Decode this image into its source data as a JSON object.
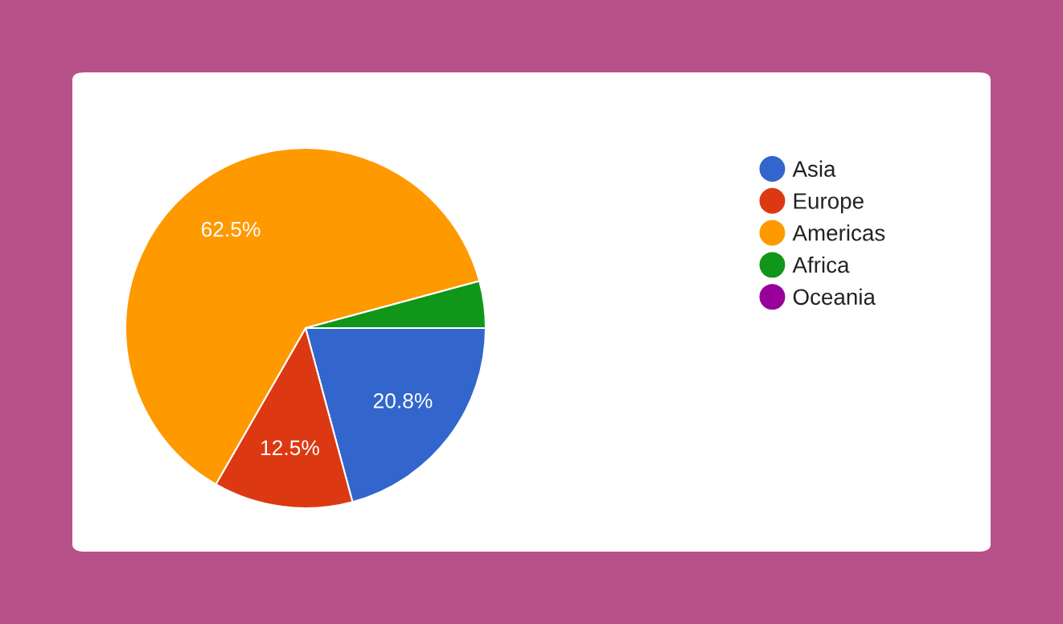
{
  "chart_data": {
    "type": "pie",
    "categories": [
      "Asia",
      "Europe",
      "Americas",
      "Africa",
      "Oceania"
    ],
    "values": [
      20.8,
      12.5,
      62.5,
      4.2,
      0
    ],
    "colors": [
      "#3366cc",
      "#dc3912",
      "#ff9900",
      "#109618",
      "#990099"
    ],
    "value_labels": [
      "20.8%",
      "12.5%",
      "62.5%",
      null,
      null
    ],
    "legend": "right"
  }
}
